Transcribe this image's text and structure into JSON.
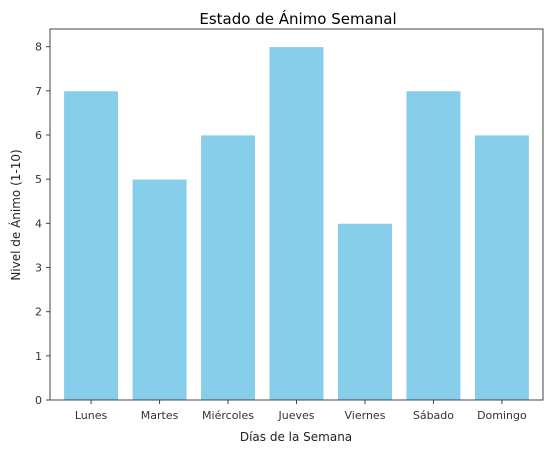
{
  "chart_data": {
    "type": "bar",
    "title": "Estado de Ánimo Semanal",
    "xlabel": "Días de la Semana",
    "ylabel": "Nivel de Ánimo (1-10)",
    "categories": [
      "Lunes",
      "Martes",
      "Miércoles",
      "Jueves",
      "Viernes",
      "Sábado",
      "Domingo"
    ],
    "values": [
      7,
      5,
      6,
      8,
      4,
      7,
      6
    ],
    "ylim": [
      0,
      8.4
    ],
    "yticks": [
      0,
      1,
      2,
      3,
      4,
      5,
      6,
      7,
      8
    ],
    "bar_color": "#87CEEB",
    "grid": false,
    "legend": "none"
  }
}
